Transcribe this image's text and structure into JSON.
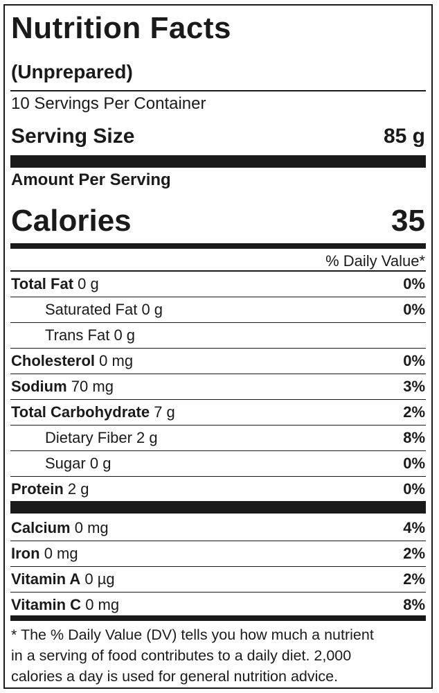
{
  "header": {
    "title": "Nutrition Facts",
    "subtitle": "(Unprepared)",
    "servings_per_container": "10 Servings Per Container",
    "serving_size_label": "Serving Size",
    "serving_size_value": "85 g"
  },
  "calories": {
    "amount_label": "Amount Per Serving",
    "label": "Calories",
    "value": "35"
  },
  "daily_value_header": "% Daily Value*",
  "nutrients": [
    {
      "name": "Total Fat",
      "amount": "0 g",
      "dv": "0%",
      "indent": false
    },
    {
      "name": "Saturated Fat",
      "amount": "0 g",
      "dv": "0%",
      "indent": true
    },
    {
      "name": "Trans Fat",
      "amount": "0 g",
      "dv": "",
      "indent": true
    },
    {
      "name": "Cholesterol",
      "amount": "0 mg",
      "dv": "0%",
      "indent": false
    },
    {
      "name": "Sodium",
      "amount": "70 mg",
      "dv": "3%",
      "indent": false
    },
    {
      "name": "Total Carbohydrate",
      "amount": "7 g",
      "dv": "2%",
      "indent": false
    },
    {
      "name": "Dietary Fiber",
      "amount": "2 g",
      "dv": "8%",
      "indent": true
    },
    {
      "name": "Sugar",
      "amount": "0 g",
      "dv": "0%",
      "indent": true
    },
    {
      "name": "Protein",
      "amount": "2 g",
      "dv": "0%",
      "indent": false
    }
  ],
  "vitamins": [
    {
      "name": "Calcium",
      "amount": "0 mg",
      "dv": "4%"
    },
    {
      "name": "Iron",
      "amount": "0 mg",
      "dv": "2%"
    },
    {
      "name": "Vitamin A",
      "amount": "0 µg",
      "dv": "2%"
    },
    {
      "name": "Vitamin C",
      "amount": "0 mg",
      "dv": "8%"
    }
  ],
  "footnote": {
    "line1": "* The % Daily Value (DV) tells you how much a nutrient",
    "line2": "in a serving of food contributes to a daily diet. 2,000",
    "line3": "calories a day is used for general nutrition advice."
  }
}
